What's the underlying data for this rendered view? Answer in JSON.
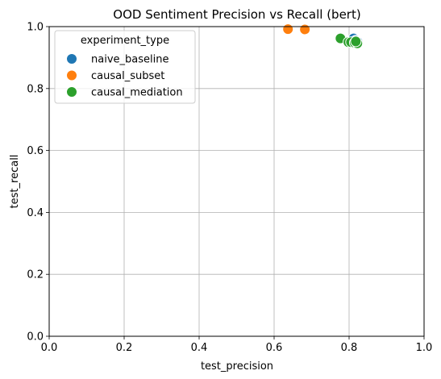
{
  "chart_data": {
    "type": "scatter",
    "title": "OOD Sentiment Precision vs Recall (bert)",
    "xlabel": "test_precision",
    "ylabel": "test_recall",
    "xlim": [
      0.0,
      1.0
    ],
    "ylim": [
      0.0,
      1.0
    ],
    "xticks": [
      "0.0",
      "0.2",
      "0.4",
      "0.6",
      "0.8",
      "1.0"
    ],
    "yticks": [
      "0.0",
      "0.2",
      "0.4",
      "0.6",
      "0.8",
      "1.0"
    ],
    "grid": true,
    "legend": {
      "title": "experiment_type",
      "placement": "upper-left"
    },
    "series": [
      {
        "name": "naive_baseline",
        "color": "#1f77b4",
        "points": [
          {
            "x": 0.812,
            "y": 0.962
          },
          {
            "x": 0.818,
            "y": 0.955
          },
          {
            "x": 0.823,
            "y": 0.95
          }
        ]
      },
      {
        "name": "causal_subset",
        "color": "#ff7f0e",
        "points": [
          {
            "x": 0.637,
            "y": 0.992
          },
          {
            "x": 0.682,
            "y": 0.991
          }
        ]
      },
      {
        "name": "causal_mediation",
        "color": "#2ca02c",
        "points": [
          {
            "x": 0.777,
            "y": 0.962
          },
          {
            "x": 0.798,
            "y": 0.95
          },
          {
            "x": 0.805,
            "y": 0.95
          },
          {
            "x": 0.815,
            "y": 0.948
          },
          {
            "x": 0.822,
            "y": 0.946
          },
          {
            "x": 0.818,
            "y": 0.952
          }
        ]
      }
    ]
  }
}
